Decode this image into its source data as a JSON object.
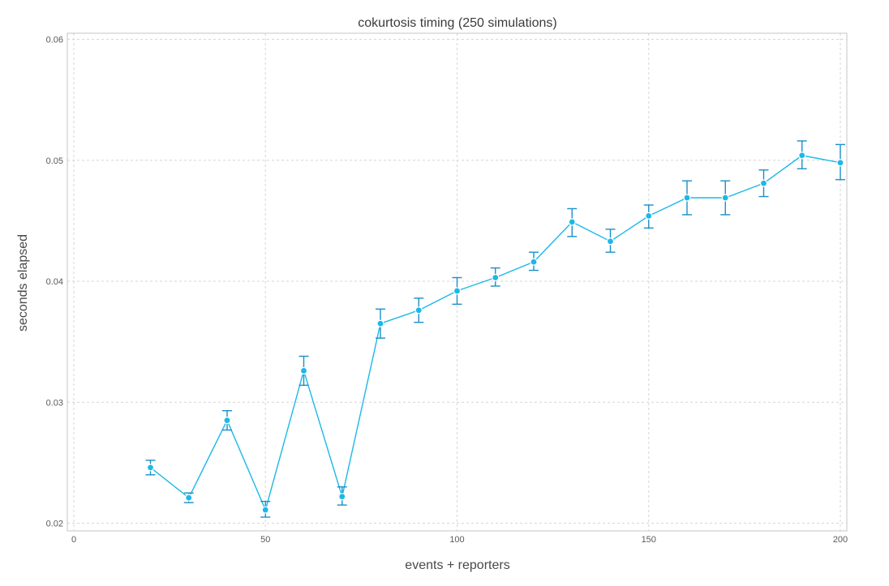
{
  "chart_data": {
    "type": "line",
    "title": "cokurtosis timing (250 simulations)",
    "xlabel": "events + reporters",
    "ylabel": "seconds elapsed",
    "xlim": [
      0,
      200
    ],
    "ylim": [
      0.02,
      0.06
    ],
    "x_ticks": [
      0,
      50,
      100,
      150,
      200
    ],
    "y_ticks": [
      0.02,
      0.03,
      0.04,
      0.05,
      0.06
    ],
    "x_tick_labels": [
      "0",
      "50",
      "100",
      "150",
      "200"
    ],
    "y_tick_labels": [
      "0.02",
      "0.03",
      "0.04",
      "0.05",
      "0.06"
    ],
    "grid": true,
    "color": "#1cb8e8",
    "errorbar_color": "#1a8fc9",
    "series": [
      {
        "x": [
          20,
          30,
          40,
          50,
          60,
          70,
          80,
          90,
          100,
          110,
          120,
          130,
          140,
          150,
          160,
          170,
          180,
          190,
          200
        ],
        "y": [
          0.0246,
          0.0221,
          0.0285,
          0.0211,
          0.0326,
          0.0222,
          0.0365,
          0.0376,
          0.0392,
          0.0403,
          0.0416,
          0.0449,
          0.0433,
          0.0454,
          0.0469,
          0.0469,
          0.0481,
          0.0504,
          0.0498
        ],
        "y_low": [
          0.024,
          0.0217,
          0.0277,
          0.0205,
          0.0314,
          0.0215,
          0.0353,
          0.0366,
          0.0381,
          0.0396,
          0.0409,
          0.0437,
          0.0424,
          0.0444,
          0.0455,
          0.0455,
          0.047,
          0.0493,
          0.0484
        ],
        "y_high": [
          0.0252,
          0.0225,
          0.0293,
          0.0218,
          0.0338,
          0.023,
          0.0377,
          0.0386,
          0.0403,
          0.0411,
          0.0424,
          0.046,
          0.0443,
          0.0463,
          0.0483,
          0.0483,
          0.0492,
          0.0516,
          0.0513
        ]
      }
    ]
  }
}
